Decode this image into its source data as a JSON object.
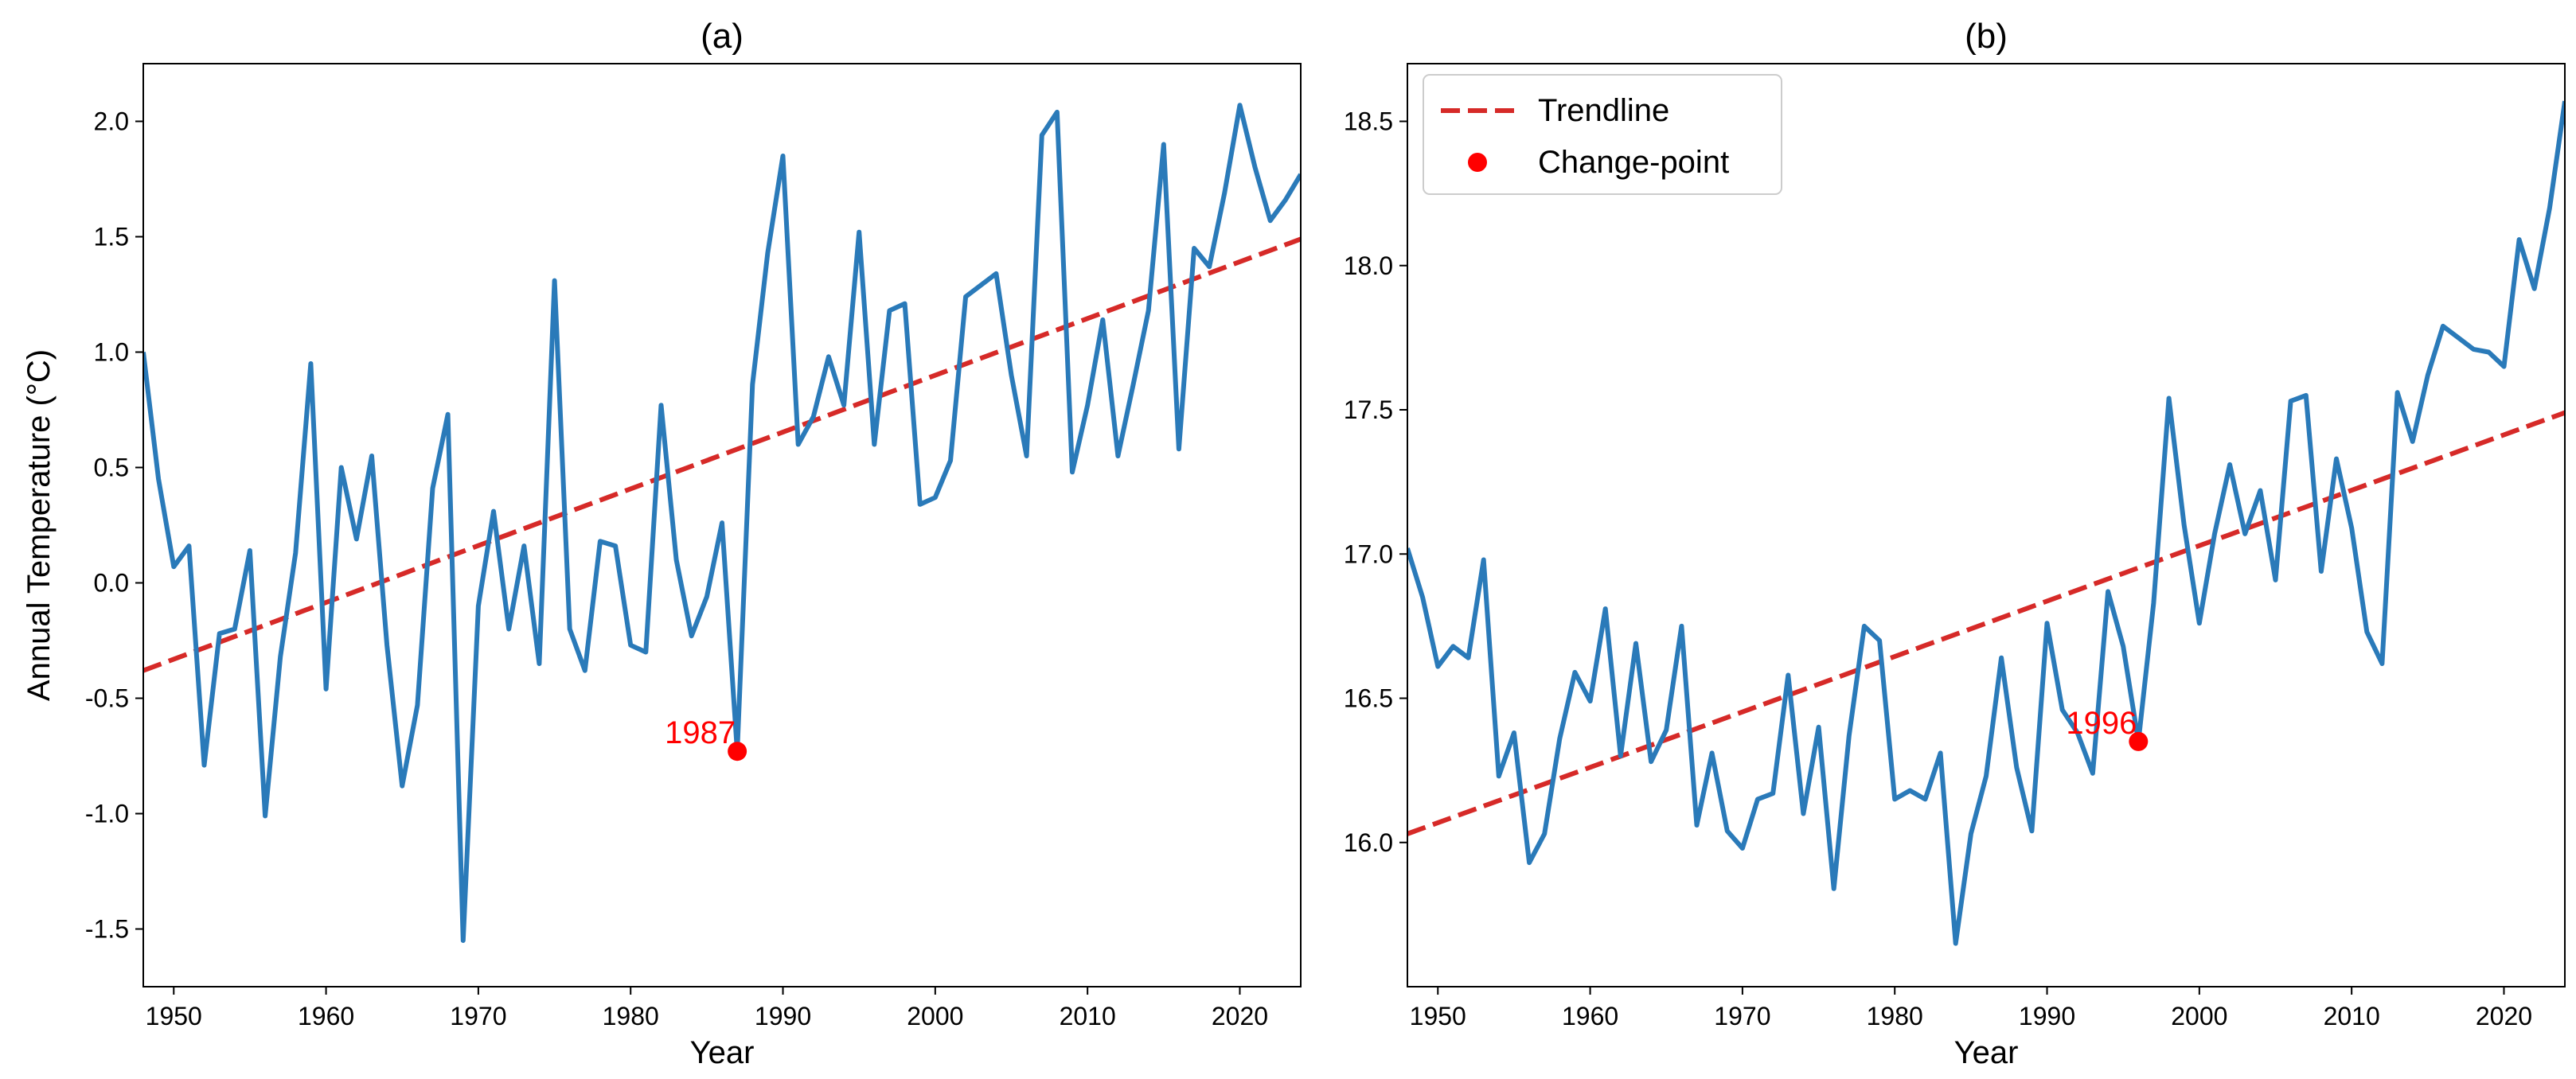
{
  "chart_data": [
    {
      "type": "line",
      "title": "(a)",
      "xlabel": "Year",
      "ylabel": "Annual Temperature (°C)",
      "xlim": [
        1948,
        2024
      ],
      "ylim": [
        -1.75,
        2.25
      ],
      "xticks": [
        1950,
        1960,
        1970,
        1980,
        1990,
        2000,
        2010,
        2020
      ],
      "xtick_labels": [
        "1950",
        "1960",
        "1970",
        "1980",
        "1990",
        "2000",
        "2010",
        "2020"
      ],
      "yticks": [
        -1.5,
        -1.0,
        -0.5,
        0.0,
        0.5,
        1.0,
        1.5,
        2.0
      ],
      "ytick_labels": [
        "-1.5",
        "-1.0",
        "-0.5",
        "0.0",
        "0.5",
        "1.0",
        "1.5",
        "2.0"
      ],
      "grid": false,
      "series": [
        {
          "x": [
            1948,
            1949,
            1950,
            1951,
            1952,
            1953,
            1954,
            1955,
            1956,
            1957,
            1958,
            1959,
            1960,
            1961,
            1962,
            1963,
            1964,
            1965,
            1966,
            1967,
            1968,
            1969,
            1970,
            1971,
            1972,
            1973,
            1974,
            1975,
            1976,
            1977,
            1978,
            1979,
            1980,
            1981,
            1982,
            1983,
            1984,
            1985,
            1986,
            1987,
            1988,
            1989,
            1990,
            1991,
            1992,
            1993,
            1994,
            1995,
            1996,
            1997,
            1998,
            1999,
            2000,
            2001,
            2002,
            2003,
            2004,
            2005,
            2006,
            2007,
            2008,
            2009,
            2010,
            2011,
            2012,
            2013,
            2014,
            2015,
            2016,
            2017,
            2018,
            2019,
            2020,
            2021,
            2022,
            2023,
            2024
          ],
          "values": [
            1.0,
            0.45,
            0.07,
            0.16,
            -0.79,
            -0.22,
            -0.2,
            0.14,
            -1.01,
            -0.32,
            0.13,
            0.95,
            -0.46,
            0.5,
            0.19,
            0.55,
            -0.27,
            -0.88,
            -0.53,
            0.41,
            0.73,
            -1.55,
            -0.1,
            0.31,
            -0.2,
            0.16,
            -0.35,
            1.31,
            -0.2,
            -0.38,
            0.18,
            0.16,
            -0.27,
            -0.3,
            0.77,
            0.1,
            -0.23,
            -0.06,
            0.26,
            -0.73,
            0.86,
            1.43,
            1.85,
            0.6,
            0.72,
            0.98,
            0.77,
            1.52,
            0.6,
            1.18,
            1.21,
            0.34,
            0.37,
            0.53,
            1.24,
            1.29,
            1.34,
            0.9,
            0.55,
            1.94,
            2.04,
            0.48,
            0.77,
            1.14,
            0.55,
            0.86,
            1.18,
            1.9,
            0.58,
            1.45,
            1.37,
            1.69,
            2.07,
            1.8,
            1.57,
            1.66,
            1.77
          ],
          "color": "#2a7ab9"
        }
      ],
      "trendline": {
        "name": "Trendline",
        "x": [
          1948,
          2024
        ],
        "values": [
          -0.38,
          1.49
        ],
        "color": "#d62a28"
      },
      "change_point": {
        "name": "Change-point",
        "x": 1987,
        "value": -0.73,
        "label": "1987",
        "color": "#ff0000"
      }
    },
    {
      "type": "line",
      "title": "(b)",
      "xlabel": "Year",
      "ylabel": "",
      "xlim": [
        1948,
        2024
      ],
      "ylim": [
        15.5,
        18.7
      ],
      "xticks": [
        1950,
        1960,
        1970,
        1980,
        1990,
        2000,
        2010,
        2020
      ],
      "xtick_labels": [
        "1950",
        "1960",
        "1970",
        "1980",
        "1990",
        "2000",
        "2010",
        "2020"
      ],
      "yticks": [
        16.0,
        16.5,
        17.0,
        17.5,
        18.0,
        18.5
      ],
      "ytick_labels": [
        "16.0",
        "16.5",
        "17.0",
        "17.5",
        "18.0",
        "18.5"
      ],
      "grid": false,
      "legend": {
        "placement": "top-left",
        "entries": [
          "Trendline",
          "Change-point"
        ]
      },
      "series": [
        {
          "x": [
            1948,
            1949,
            1950,
            1951,
            1952,
            1953,
            1954,
            1955,
            1956,
            1957,
            1958,
            1959,
            1960,
            1961,
            1962,
            1963,
            1964,
            1965,
            1966,
            1967,
            1968,
            1969,
            1970,
            1971,
            1972,
            1973,
            1974,
            1975,
            1976,
            1977,
            1978,
            1979,
            1980,
            1981,
            1982,
            1983,
            1984,
            1985,
            1986,
            1987,
            1988,
            1989,
            1990,
            1991,
            1992,
            1993,
            1994,
            1995,
            1996,
            1997,
            1998,
            1999,
            2000,
            2001,
            2002,
            2003,
            2004,
            2005,
            2006,
            2007,
            2008,
            2009,
            2010,
            2011,
            2012,
            2013,
            2014,
            2015,
            2016,
            2017,
            2018,
            2019,
            2020,
            2021,
            2022,
            2023,
            2024
          ],
          "values": [
            17.02,
            16.85,
            16.61,
            16.68,
            16.64,
            16.98,
            16.23,
            16.38,
            15.93,
            16.03,
            16.36,
            16.59,
            16.49,
            16.81,
            16.3,
            16.69,
            16.28,
            16.39,
            16.75,
            16.06,
            16.31,
            16.04,
            15.98,
            16.15,
            16.17,
            16.58,
            16.1,
            16.4,
            15.84,
            16.37,
            16.75,
            16.7,
            16.15,
            16.18,
            16.15,
            16.31,
            15.65,
            16.03,
            16.23,
            16.64,
            16.26,
            16.04,
            16.76,
            16.46,
            16.38,
            16.24,
            16.87,
            16.68,
            16.35,
            16.83,
            17.54,
            17.1,
            16.76,
            17.07,
            17.31,
            17.07,
            17.22,
            16.91,
            17.53,
            17.55,
            16.94,
            17.33,
            17.09,
            16.73,
            16.62,
            17.56,
            17.39,
            17.62,
            17.79,
            17.75,
            17.71,
            17.7,
            17.65,
            18.09,
            17.92,
            18.2,
            18.57
          ],
          "color": "#2a7ab9"
        }
      ],
      "trendline": {
        "name": "Trendline",
        "x": [
          1948,
          2024
        ],
        "values": [
          16.03,
          17.49
        ],
        "color": "#d62a28"
      },
      "change_point": {
        "name": "Change-point",
        "x": 1996,
        "value": 16.35,
        "label": "1996",
        "color": "#ff0000"
      }
    }
  ]
}
